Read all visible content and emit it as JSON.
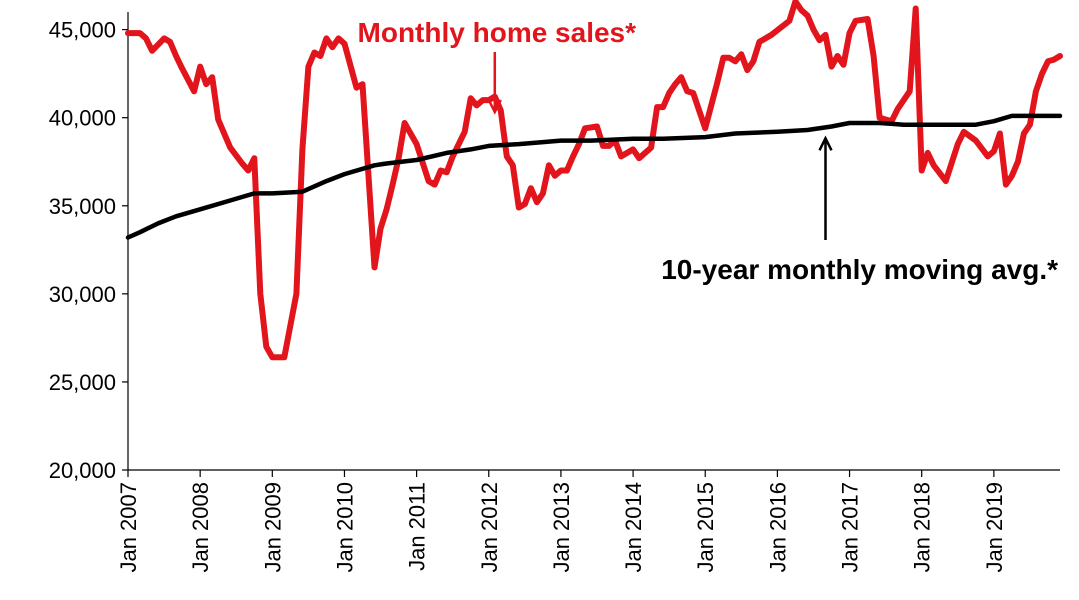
{
  "chart_data": {
    "type": "line",
    "title": "",
    "xlabel": "",
    "ylabel": "",
    "ylim": [
      20000,
      46000
    ],
    "y_ticks": [
      20000,
      25000,
      30000,
      35000,
      40000,
      45000
    ],
    "y_tick_labels": [
      "20,000",
      "25,000",
      "30,000",
      "35,000",
      "40,000",
      "45,000"
    ],
    "x_range": [
      "2007-01",
      "2019-12"
    ],
    "x_tick_labels": [
      "Jan 2007",
      "Jan 2008",
      "Jan 2009",
      "Jan 2010",
      "Jan 2011",
      "Jan 2012",
      "Jan 2013",
      "Jan 2014",
      "Jan 2015",
      "Jan 2016",
      "Jan 2017",
      "Jan 2018",
      "Jan 2019"
    ],
    "grid": false,
    "series": [
      {
        "name": "Monthly home sales*",
        "color": "#e2141c",
        "x": [
          "2007-01",
          "2007-03",
          "2007-04",
          "2007-05",
          "2007-07",
          "2007-08",
          "2007-09",
          "2007-10",
          "2007-12",
          "2008-01",
          "2008-02",
          "2008-03",
          "2008-04",
          "2008-06",
          "2008-08",
          "2008-09",
          "2008-10",
          "2008-11",
          "2008-12",
          "2009-01",
          "2009-03",
          "2009-05",
          "2009-06",
          "2009-07",
          "2009-08",
          "2009-09",
          "2009-10",
          "2009-11",
          "2009-12",
          "2010-01",
          "2010-03",
          "2010-04",
          "2010-06",
          "2010-07",
          "2010-08",
          "2010-09",
          "2010-10",
          "2010-11",
          "2011-01",
          "2011-03",
          "2011-04",
          "2011-05",
          "2011-06",
          "2011-07",
          "2011-09",
          "2011-10",
          "2011-11",
          "2011-12",
          "2012-01",
          "2012-02",
          "2012-03",
          "2012-04",
          "2012-05",
          "2012-06",
          "2012-07",
          "2012-08",
          "2012-09",
          "2012-10",
          "2012-11",
          "2012-12",
          "2013-01",
          "2013-02",
          "2013-03",
          "2013-04",
          "2013-05",
          "2013-07",
          "2013-08",
          "2013-09",
          "2013-10",
          "2013-11",
          "2014-01",
          "2014-02",
          "2014-03",
          "2014-04",
          "2014-05",
          "2014-06",
          "2014-07",
          "2014-08",
          "2014-09",
          "2014-10",
          "2014-11",
          "2015-01",
          "2015-03",
          "2015-04",
          "2015-05",
          "2015-06",
          "2015-07",
          "2015-08",
          "2015-09",
          "2015-10",
          "2015-12",
          "2016-03",
          "2016-04",
          "2016-05",
          "2016-06",
          "2016-07",
          "2016-08",
          "2016-09",
          "2016-10",
          "2016-11",
          "2016-12",
          "2017-01",
          "2017-02",
          "2017-04",
          "2017-05",
          "2017-06",
          "2017-07",
          "2017-08",
          "2017-09",
          "2017-10",
          "2017-11",
          "2017-12",
          "2018-01",
          "2018-02",
          "2018-03",
          "2018-05",
          "2018-07",
          "2018-08",
          "2018-10",
          "2018-12",
          "2019-01",
          "2019-02",
          "2019-03",
          "2019-04",
          "2019-05",
          "2019-06",
          "2019-07",
          "2019-08",
          "2019-09",
          "2019-10",
          "2019-11",
          "2019-12"
        ],
        "y": [
          44800,
          44800,
          44500,
          43800,
          44500,
          44300,
          43500,
          42800,
          41500,
          42900,
          41900,
          42300,
          39900,
          38300,
          37400,
          37000,
          37700,
          30000,
          27000,
          26400,
          26400,
          30000,
          38200,
          42900,
          43700,
          43500,
          44500,
          44000,
          44500,
          44200,
          41700,
          41900,
          31500,
          33700,
          34800,
          36200,
          37700,
          39700,
          38500,
          36400,
          36200,
          37000,
          36900,
          37800,
          39200,
          41100,
          40700,
          41000,
          41000,
          41200,
          40400,
          37800,
          37300,
          34900,
          35100,
          36000,
          35200,
          35700,
          37300,
          36700,
          37000,
          37000,
          37800,
          38500,
          39400,
          39500,
          38400,
          38400,
          38700,
          37800,
          38200,
          37700,
          38000,
          38300,
          40600,
          40600,
          41400,
          41900,
          42300,
          41500,
          41400,
          39400,
          42000,
          43400,
          43400,
          43200,
          43600,
          42700,
          43200,
          44300,
          44700,
          45500,
          46600,
          46100,
          45800,
          45000,
          44400,
          44700,
          42900,
          43500,
          43000,
          44800,
          45500,
          45600,
          43500,
          40000,
          39900,
          39800,
          40500,
          41000,
          41500,
          46200,
          37000,
          38000,
          37300,
          36400,
          38500,
          39200,
          38700,
          37800,
          38100,
          39100,
          36200,
          36700,
          37500,
          39100,
          39600,
          41500,
          42500,
          43200,
          43300,
          43500
        ]
      },
      {
        "name": "10-year monthly moving avg.*",
        "color": "#000000",
        "x": [
          "2007-01",
          "2007-03",
          "2007-06",
          "2007-09",
          "2008-01",
          "2008-06",
          "2008-10",
          "2009-01",
          "2009-06",
          "2009-10",
          "2010-01",
          "2010-06",
          "2010-08",
          "2011-01",
          "2011-06",
          "2011-10",
          "2012-01",
          "2012-06",
          "2013-01",
          "2013-06",
          "2014-01",
          "2014-06",
          "2015-01",
          "2015-06",
          "2016-01",
          "2016-06",
          "2016-10",
          "2017-01",
          "2017-06",
          "2017-10",
          "2018-01",
          "2018-06",
          "2018-10",
          "2019-01",
          "2019-04",
          "2019-08",
          "2019-12"
        ],
        "y": [
          33200,
          33500,
          34000,
          34400,
          34800,
          35300,
          35700,
          35700,
          35800,
          36400,
          36800,
          37300,
          37400,
          37600,
          38000,
          38200,
          38400,
          38500,
          38700,
          38700,
          38800,
          38800,
          38900,
          39100,
          39200,
          39300,
          39500,
          39700,
          39700,
          39600,
          39600,
          39600,
          39600,
          39800,
          40100,
          40100,
          40100
        ]
      }
    ],
    "annotations": [
      {
        "text": "Monthly home sales*",
        "color": "#e2141c",
        "target": "2012-02",
        "target_value": 41000
      },
      {
        "text": "10-year monthly moving avg.*",
        "color": "#000000",
        "target": "2016-09",
        "target_value": 39400
      }
    ]
  }
}
